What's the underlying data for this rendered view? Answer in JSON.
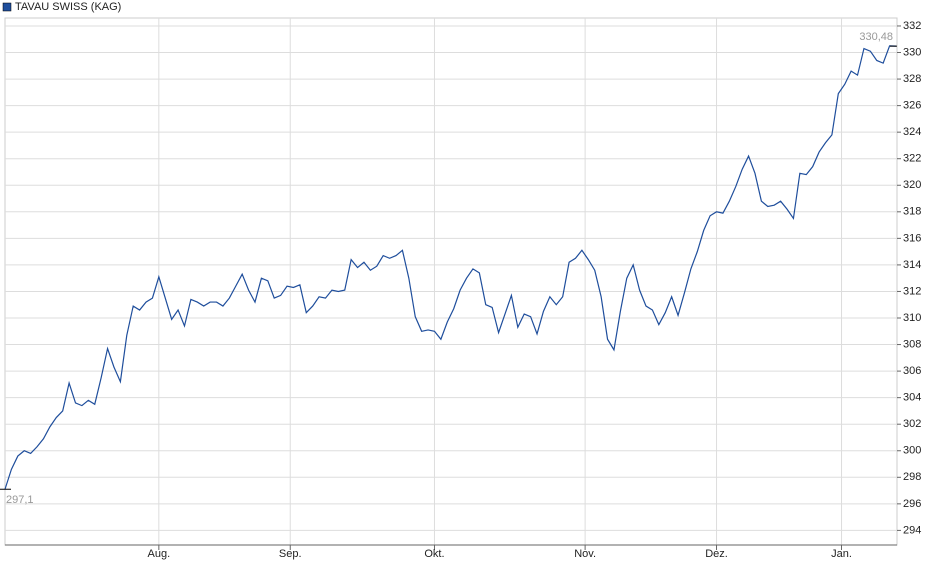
{
  "chart_data": {
    "type": "line",
    "series": [
      {
        "name": "TAVAU SWISS (KAG)",
        "color": "#1f4e9c",
        "first_label": "297,1",
        "last_label": "330,48",
        "values": [
          297.1,
          298.6,
          299.6,
          300.0,
          299.8,
          300.3,
          300.9,
          301.8,
          302.5,
          303.0,
          305.1,
          303.6,
          303.4,
          303.8,
          303.5,
          305.5,
          307.7,
          306.3,
          305.2,
          308.7,
          310.9,
          310.6,
          311.2,
          311.5,
          313.1,
          311.5,
          309.9,
          310.6,
          309.4,
          311.4,
          311.2,
          310.9,
          311.2,
          311.2,
          310.9,
          311.5,
          312.4,
          313.3,
          312.1,
          311.2,
          313.0,
          312.8,
          311.5,
          311.7,
          312.4,
          312.3,
          312.5,
          310.4,
          310.9,
          311.6,
          311.5,
          312.1,
          312.0,
          312.1,
          314.4,
          313.8,
          314.2,
          313.6,
          313.9,
          314.7,
          314.5,
          314.7,
          315.1,
          313.0,
          310.1,
          309.0,
          309.1,
          309.0,
          308.4,
          309.7,
          310.7,
          312.1,
          313.0,
          313.7,
          313.4,
          311.0,
          310.8,
          308.9,
          310.3,
          311.7,
          309.3,
          310.3,
          310.1,
          308.8,
          310.5,
          311.6,
          311.0,
          311.6,
          314.2,
          314.5,
          315.1,
          314.4,
          313.6,
          311.6,
          308.4,
          307.6,
          310.5,
          313.0,
          314.0,
          312.1,
          310.9,
          310.6,
          309.5,
          310.4,
          311.6,
          310.2,
          311.9,
          313.7,
          315.0,
          316.6,
          317.7,
          318.0,
          317.9,
          318.8,
          319.9,
          321.2,
          322.2,
          320.9,
          318.8,
          318.4,
          318.5,
          318.8,
          318.2,
          317.5,
          320.9,
          320.8,
          321.4,
          322.5,
          323.2,
          323.8,
          326.9,
          327.6,
          328.6,
          328.3,
          330.3,
          330.1,
          329.4,
          329.2,
          330.5,
          330.48
        ]
      }
    ],
    "x": [
      0,
      1,
      2,
      3,
      4,
      5,
      6,
      7,
      8,
      9,
      10,
      11,
      12,
      13,
      14,
      15,
      16,
      17,
      18,
      19,
      20,
      21,
      22,
      23,
      24,
      25,
      26,
      27,
      28,
      29,
      30,
      31,
      32,
      33,
      34,
      35,
      36,
      37,
      38,
      39,
      40,
      41,
      42,
      43,
      44,
      45,
      46,
      47,
      48,
      49,
      50,
      51,
      52,
      53,
      54,
      55,
      56,
      57,
      58,
      59,
      60,
      61,
      62,
      63,
      64,
      65,
      66,
      67,
      68,
      69,
      70,
      71,
      72,
      73,
      74,
      75,
      76,
      77,
      78,
      79,
      80,
      81,
      82,
      83,
      84,
      85,
      86,
      87,
      88,
      89,
      90,
      91,
      92,
      93,
      94,
      95,
      96,
      97,
      98,
      99,
      100,
      101,
      102,
      103,
      104,
      105,
      106,
      107,
      108,
      109,
      110,
      111,
      112,
      113,
      114,
      115,
      116,
      117,
      118,
      119,
      120,
      121,
      122,
      123,
      124,
      125,
      126,
      127,
      128,
      129,
      130,
      131,
      132,
      133,
      134,
      135,
      136,
      137,
      138,
      139
    ],
    "xlim": [
      0,
      139
    ],
    "xticks": [
      {
        "value": 24,
        "label": "Aug."
      },
      {
        "value": 44.5,
        "label": "Sep."
      },
      {
        "value": 67,
        "label": "Okt."
      },
      {
        "value": 90.5,
        "label": "Nov."
      },
      {
        "value": 111,
        "label": "Dez."
      },
      {
        "value": 130.5,
        "label": "Jan."
      }
    ],
    "ylim": [
      292.9,
      332.6
    ],
    "yticks": [
      294,
      296,
      298,
      300,
      302,
      304,
      306,
      308,
      310,
      312,
      314,
      316,
      318,
      320,
      322,
      324,
      326,
      328,
      330,
      332
    ],
    "grid": true
  }
}
